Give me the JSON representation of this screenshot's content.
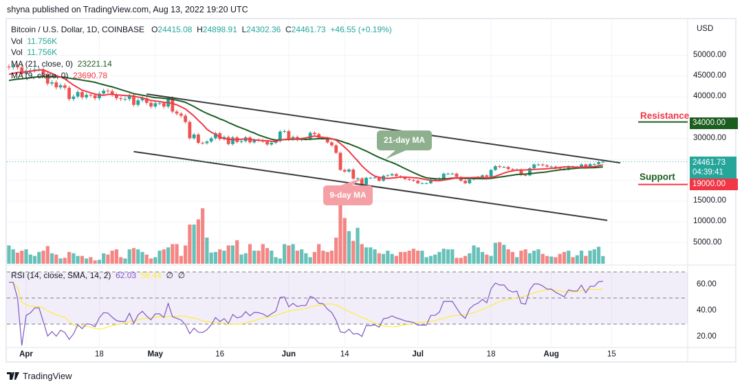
{
  "publish_line": "shyna published on TradingView.com, Aug 13, 2022 19:20 UTC",
  "legend": {
    "symbol": "Bitcoin / U.S. Dollar, 1D, COINBASE",
    "o_label": "O",
    "o": "24415.08",
    "h_label": "H",
    "h": "24898.91",
    "l_label": "L",
    "l": "24302.36",
    "c_label": "C",
    "c": "24461.73",
    "change": "+46.55 (+0.19%)",
    "vol_label": "Vol",
    "vol": "11.756K",
    "vol2_label": "Vol",
    "vol2": "11.756K",
    "ma21_label": "MA (21, close, 0)",
    "ma21": "23221.14",
    "ma9_label": "MA (9, close, 0)",
    "ma9": "23690.78",
    "rsi_label": "RSI (14, close, SMA, 14, 2)",
    "rsi": "62.03",
    "rsi_sma": "56.44",
    "rsi_extra1": "∅",
    "rsi_extra2": "∅"
  },
  "colors": {
    "up": "#26a69a",
    "down": "#ef5350",
    "ma21": "#1b5e20",
    "ma9": "#f23645",
    "rsi": "#7e57c2",
    "rsi_sma": "#ffeb3b",
    "trend": "#3a3a3a",
    "resistance": "#f23645",
    "support": "#1b5e20"
  },
  "currency": "USD",
  "price_ticks": [
    "50000.00",
    "45000.00",
    "40000.00",
    "30000.00",
    "15000.00",
    "10000.00",
    "5000.00"
  ],
  "rsi_ticks": [
    "60.00",
    "40.00",
    "20.00"
  ],
  "time_ticks": [
    {
      "label": "Apr",
      "date": "2022-04-01",
      "bold": true
    },
    {
      "label": "18",
      "date": "2022-04-18",
      "bold": false
    },
    {
      "label": "May",
      "date": "2022-05-01",
      "bold": true
    },
    {
      "label": "16",
      "date": "2022-05-16",
      "bold": false
    },
    {
      "label": "Jun",
      "date": "2022-06-01",
      "bold": true
    },
    {
      "label": "14",
      "date": "2022-06-14",
      "bold": false
    },
    {
      "label": "Jul",
      "date": "2022-07-01",
      "bold": true
    },
    {
      "label": "18",
      "date": "2022-07-18",
      "bold": false
    },
    {
      "label": "Aug",
      "date": "2022-08-01",
      "bold": true
    },
    {
      "label": "15",
      "date": "2022-08-15",
      "bold": false
    }
  ],
  "last_price_tag": "24461.73",
  "countdown": "04:39:41",
  "resistance": {
    "label": "Resistance",
    "value": "34000.00",
    "price": 34000
  },
  "support": {
    "label": "Support",
    "value": "19000.00",
    "price": 19000
  },
  "callouts": {
    "ma21": "21-day MA",
    "ma9": "9-day MA"
  },
  "logo_text": "TradingView",
  "chart_data": {
    "type": "candlestick",
    "title": "Bitcoin / U.S. Dollar, 1D, COINBASE",
    "start_date": "2022-03-28",
    "end_date": "2022-08-13",
    "ylim": [
      0,
      55000
    ],
    "y_unit": "USD",
    "grid": true,
    "closes_k": [
      47.1,
      47.4,
      47.1,
      45.5,
      46.3,
      46.4,
      46.6,
      46.6,
      45.5,
      43.2,
      43.5,
      42.3,
      42.8,
      42.2,
      39.5,
      40.1,
      41.2,
      39.9,
      40.5,
      40.4,
      39.7,
      40.8,
      41.5,
      41.4,
      40.5,
      39.7,
      39.5,
      39.5,
      40.4,
      38.1,
      39.2,
      39.7,
      38.6,
      37.7,
      38.5,
      38.5,
      37.7,
      39.7,
      36.5,
      36.0,
      35.5,
      34.0,
      30.1,
      31.0,
      29.0,
      28.9,
      29.3,
      30.1,
      31.3,
      29.9,
      30.4,
      28.7,
      30.3,
      29.2,
      29.4,
      30.3,
      29.1,
      29.7,
      29.6,
      29.3,
      28.6,
      29.0,
      29.4,
      31.7,
      31.8,
      29.8,
      30.4,
      29.7,
      29.9,
      29.9,
      31.4,
      31.1,
      30.2,
      30.1,
      29.1,
      28.4,
      26.6,
      22.5,
      22.1,
      22.6,
      20.4,
      20.5,
      19.0,
      20.6,
      20.6,
      20.7,
      19.9,
      21.1,
      21.2,
      21.5,
      21.0,
      20.7,
      20.3,
      20.1,
      19.9,
      19.3,
      19.3,
      19.3,
      20.2,
      20.2,
      20.5,
      21.6,
      21.6,
      21.6,
      20.8,
      19.9,
      19.3,
      20.2,
      20.6,
      20.8,
      21.2,
      20.8,
      22.5,
      23.4,
      23.2,
      23.2,
      22.7,
      22.5,
      22.6,
      21.3,
      21.2,
      22.9,
      23.8,
      23.8,
      23.6,
      23.3,
      23.3,
      23.0,
      22.8,
      22.6,
      23.3,
      23.2,
      23.2,
      23.8,
      23.2,
      23.9,
      23.9,
      24.4,
      24.46
    ],
    "volumes_k": [
      28,
      22,
      17,
      20,
      22,
      14,
      12,
      18,
      20,
      27,
      16,
      14,
      8,
      9,
      18,
      16,
      12,
      12,
      8,
      10,
      5,
      6,
      16,
      14,
      20,
      22,
      10,
      8,
      22,
      24,
      22,
      18,
      14,
      8,
      10,
      20,
      22,
      25,
      30,
      30,
      12,
      28,
      60,
      60,
      68,
      85,
      40,
      17,
      18,
      22,
      20,
      28,
      28,
      36,
      14,
      16,
      30,
      20,
      20,
      30,
      24,
      20,
      10,
      8,
      30,
      28,
      30,
      20,
      22,
      16,
      10,
      18,
      30,
      20,
      18,
      20,
      40,
      90,
      70,
      50,
      35,
      55,
      30,
      25,
      25,
      22,
      16,
      15,
      20,
      15,
      12,
      18,
      18,
      20,
      23,
      20,
      20,
      10,
      12,
      14,
      18,
      23,
      22,
      22,
      9,
      9,
      12,
      16,
      28,
      25,
      18,
      14,
      12,
      32,
      33,
      29,
      22,
      18,
      10,
      20,
      22,
      16,
      20,
      22,
      15,
      12,
      11,
      10,
      15,
      18,
      20,
      10,
      13,
      20,
      12,
      20,
      22,
      26,
      11.756
    ],
    "trendlines": [
      {
        "from": {
          "date": "2022-04-29",
          "price": 40700
        },
        "to": {
          "date": "2022-08-17",
          "price": 24200
        }
      },
      {
        "from": {
          "date": "2022-04-26",
          "price": 26900
        },
        "to": {
          "date": "2022-08-14",
          "price": 10400
        }
      }
    ],
    "rsi_bands": [
      30,
      70
    ],
    "rsi_ylim": [
      15,
      75
    ]
  }
}
